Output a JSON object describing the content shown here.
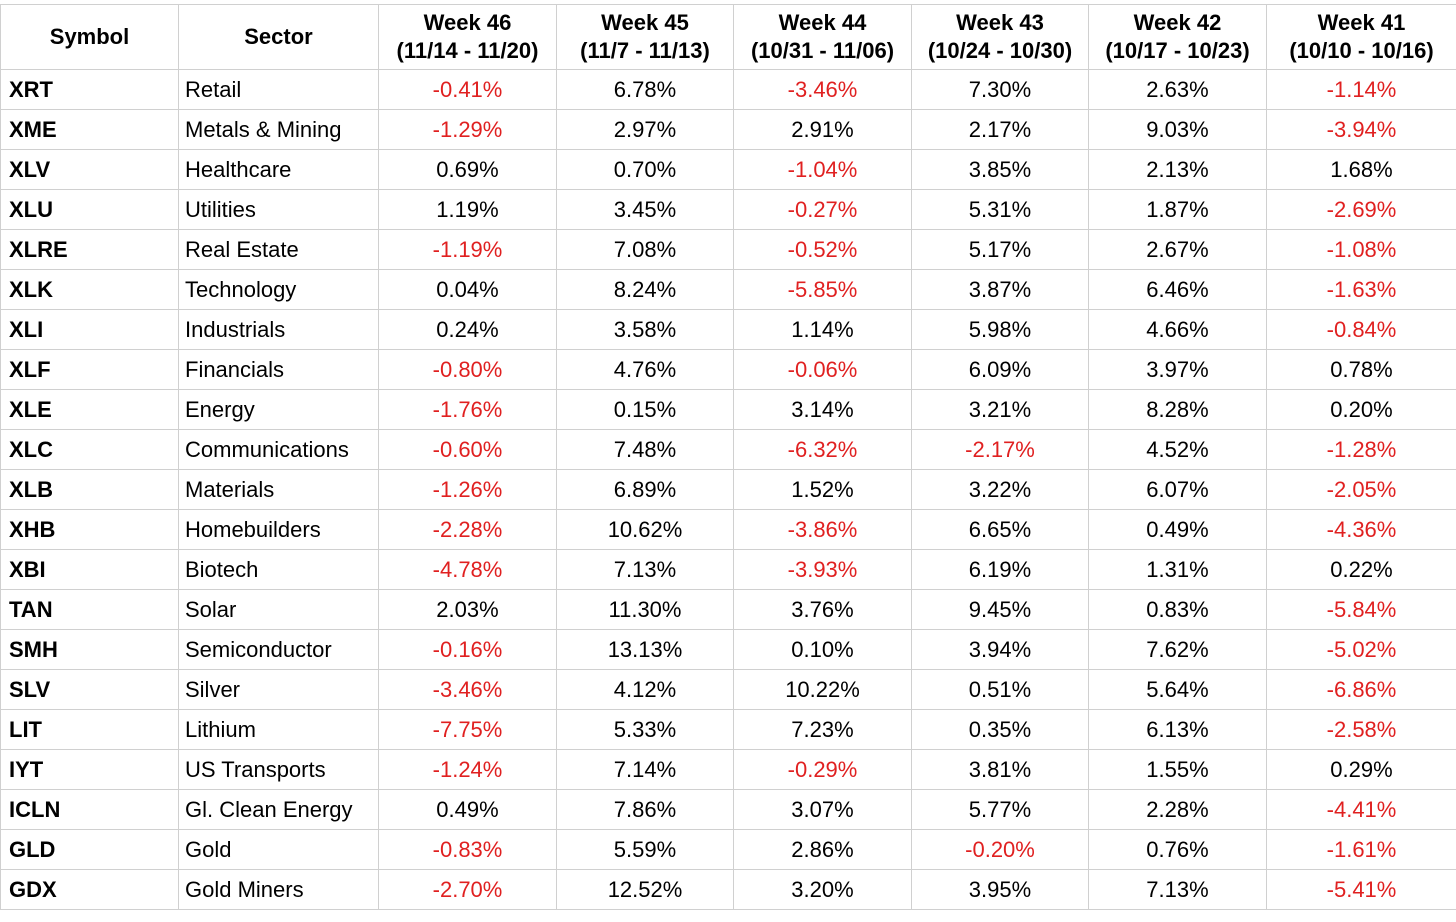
{
  "table": {
    "headers": [
      {
        "title": "Symbol",
        "sub": ""
      },
      {
        "title": "Sector",
        "sub": ""
      },
      {
        "title": "Week 46",
        "sub": "(11/14 - 11/20)"
      },
      {
        "title": "Week 45",
        "sub": "(11/7 - 11/13)"
      },
      {
        "title": "Week 44",
        "sub": "(10/31 - 11/06)"
      },
      {
        "title": "Week 43",
        "sub": "(10/24 - 10/30)"
      },
      {
        "title": "Week 42",
        "sub": "(10/17 - 10/23)"
      },
      {
        "title": "Week 41",
        "sub": "(10/10 - 10/16)"
      }
    ],
    "negative_color": "#e02020",
    "rows": [
      {
        "symbol": "XRT",
        "sector": "Retail",
        "values": [
          "-0.41%",
          "6.78%",
          "-3.46%",
          "7.30%",
          "2.63%",
          "-1.14%"
        ]
      },
      {
        "symbol": "XME",
        "sector": "Metals & Mining",
        "values": [
          "-1.29%",
          "2.97%",
          "2.91%",
          "2.17%",
          "9.03%",
          "-3.94%"
        ]
      },
      {
        "symbol": "XLV",
        "sector": "Healthcare",
        "values": [
          "0.69%",
          "0.70%",
          "-1.04%",
          "3.85%",
          "2.13%",
          "1.68%"
        ]
      },
      {
        "symbol": "XLU",
        "sector": "Utilities",
        "values": [
          "1.19%",
          "3.45%",
          "-0.27%",
          "5.31%",
          "1.87%",
          "-2.69%"
        ]
      },
      {
        "symbol": "XLRE",
        "sector": "Real Estate",
        "values": [
          "-1.19%",
          "7.08%",
          "-0.52%",
          "5.17%",
          "2.67%",
          "-1.08%"
        ]
      },
      {
        "symbol": "XLK",
        "sector": "Technology",
        "values": [
          "0.04%",
          "8.24%",
          "-5.85%",
          "3.87%",
          "6.46%",
          "-1.63%"
        ]
      },
      {
        "symbol": "XLI",
        "sector": "Industrials",
        "values": [
          "0.24%",
          "3.58%",
          "1.14%",
          "5.98%",
          "4.66%",
          "-0.84%"
        ]
      },
      {
        "symbol": "XLF",
        "sector": "Financials",
        "values": [
          "-0.80%",
          "4.76%",
          "-0.06%",
          "6.09%",
          "3.97%",
          "0.78%"
        ]
      },
      {
        "symbol": "XLE",
        "sector": "Energy",
        "values": [
          "-1.76%",
          "0.15%",
          "3.14%",
          "3.21%",
          "8.28%",
          "0.20%"
        ]
      },
      {
        "symbol": "XLC",
        "sector": "Communications",
        "values": [
          "-0.60%",
          "7.48%",
          "-6.32%",
          "-2.17%",
          "4.52%",
          "-1.28%"
        ]
      },
      {
        "symbol": "XLB",
        "sector": "Materials",
        "values": [
          "-1.26%",
          "6.89%",
          "1.52%",
          "3.22%",
          "6.07%",
          "-2.05%"
        ]
      },
      {
        "symbol": "XHB",
        "sector": "Homebuilders",
        "values": [
          "-2.28%",
          "10.62%",
          "-3.86%",
          "6.65%",
          "0.49%",
          "-4.36%"
        ]
      },
      {
        "symbol": "XBI",
        "sector": "Biotech",
        "values": [
          "-4.78%",
          "7.13%",
          "-3.93%",
          "6.19%",
          "1.31%",
          "0.22%"
        ]
      },
      {
        "symbol": "TAN",
        "sector": "Solar",
        "values": [
          "2.03%",
          "11.30%",
          "3.76%",
          "9.45%",
          "0.83%",
          "-5.84%"
        ]
      },
      {
        "symbol": "SMH",
        "sector": "Semiconductor",
        "values": [
          "-0.16%",
          "13.13%",
          "0.10%",
          "3.94%",
          "7.62%",
          "-5.02%"
        ]
      },
      {
        "symbol": "SLV",
        "sector": "Silver",
        "values": [
          "-3.46%",
          "4.12%",
          "10.22%",
          "0.51%",
          "5.64%",
          "-6.86%"
        ]
      },
      {
        "symbol": "LIT",
        "sector": "Lithium",
        "values": [
          "-7.75%",
          "5.33%",
          "7.23%",
          "0.35%",
          "6.13%",
          "-2.58%"
        ]
      },
      {
        "symbol": "IYT",
        "sector": "US Transports",
        "values": [
          "-1.24%",
          "7.14%",
          "-0.29%",
          "3.81%",
          "1.55%",
          "0.29%"
        ]
      },
      {
        "symbol": "ICLN",
        "sector": "Gl. Clean Energy",
        "values": [
          "0.49%",
          "7.86%",
          "3.07%",
          "5.77%",
          "2.28%",
          "-4.41%"
        ]
      },
      {
        "symbol": "GLD",
        "sector": "Gold",
        "values": [
          "-0.83%",
          "5.59%",
          "2.86%",
          "-0.20%",
          "0.76%",
          "-1.61%"
        ]
      },
      {
        "symbol": "GDX",
        "sector": "Gold Miners",
        "values": [
          "-2.70%",
          "12.52%",
          "3.20%",
          "3.95%",
          "7.13%",
          "-5.41%"
        ]
      }
    ]
  }
}
